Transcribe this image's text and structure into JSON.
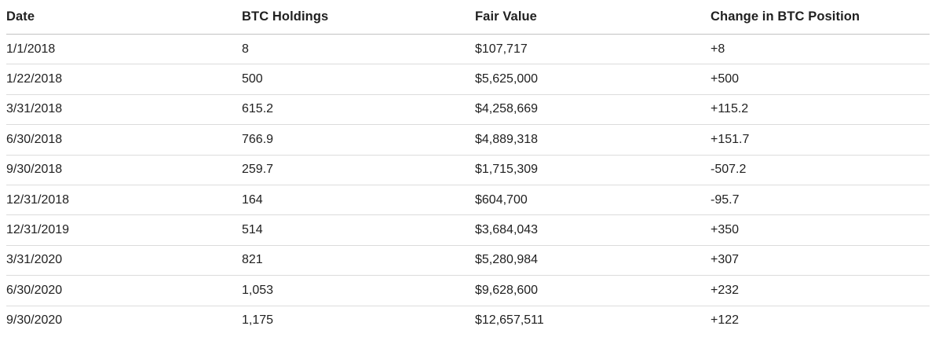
{
  "chart_data": {
    "type": "table",
    "columns": [
      "Date",
      "BTC Holdings",
      "Fair Value",
      "Change in BTC Position"
    ],
    "rows": [
      [
        "1/1/2018",
        "8",
        "$107,717",
        "+8"
      ],
      [
        "1/22/2018",
        "500",
        "$5,625,000",
        "+500"
      ],
      [
        "3/31/2018",
        "615.2",
        "$4,258,669",
        "+115.2"
      ],
      [
        "6/30/2018",
        "766.9",
        "$4,889,318",
        "+151.7"
      ],
      [
        "9/30/2018",
        "259.7",
        "$1,715,309",
        "-507.2"
      ],
      [
        "12/31/2018",
        "164",
        "$604,700",
        "-95.7"
      ],
      [
        "12/31/2019",
        "514",
        "$3,684,043",
        "+350"
      ],
      [
        "3/31/2020",
        "821",
        "$5,280,984",
        "+307"
      ],
      [
        "6/30/2020",
        "1,053",
        "$9,628,600",
        "+232"
      ],
      [
        "9/30/2020",
        "1,175",
        "$12,657,511",
        "+122"
      ]
    ]
  },
  "colors": {
    "background": "#ffffff",
    "header_text": "#212121",
    "body_text": "#212121",
    "header_border": "#c2c2c2",
    "row_border": "#dcdcdc"
  }
}
